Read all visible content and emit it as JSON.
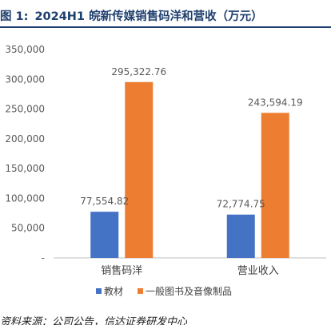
{
  "figure": {
    "number": "图 1:",
    "title": "2024H1 皖新传媒销售码洋和营收（万元）"
  },
  "source_note": "资料来源：公司公告，信达证券研发中心",
  "chart_data": {
    "type": "bar",
    "categories": [
      "销售码洋",
      "营业收入"
    ],
    "series": [
      {
        "name": "教材",
        "color": "#4472c4",
        "values": [
          77554.82,
          72774.75
        ],
        "labels": [
          "77,554.82",
          "72,774.75"
        ]
      },
      {
        "name": "一般图书及音像制品",
        "color": "#ed7d31",
        "values": [
          295322.76,
          243594.19
        ],
        "labels": [
          "295,322.76",
          "243,594.19"
        ]
      }
    ],
    "ylim": [
      0,
      350000
    ],
    "yticks": [
      0,
      50000,
      100000,
      150000,
      200000,
      250000,
      300000,
      350000
    ],
    "ytick_labels": [
      "-",
      "50,000",
      "100,000",
      "150,000",
      "200,000",
      "250,000",
      "300,000",
      "350,000"
    ],
    "grid": false,
    "legend_position": "bottom-center",
    "xlabel": "",
    "ylabel": ""
  }
}
